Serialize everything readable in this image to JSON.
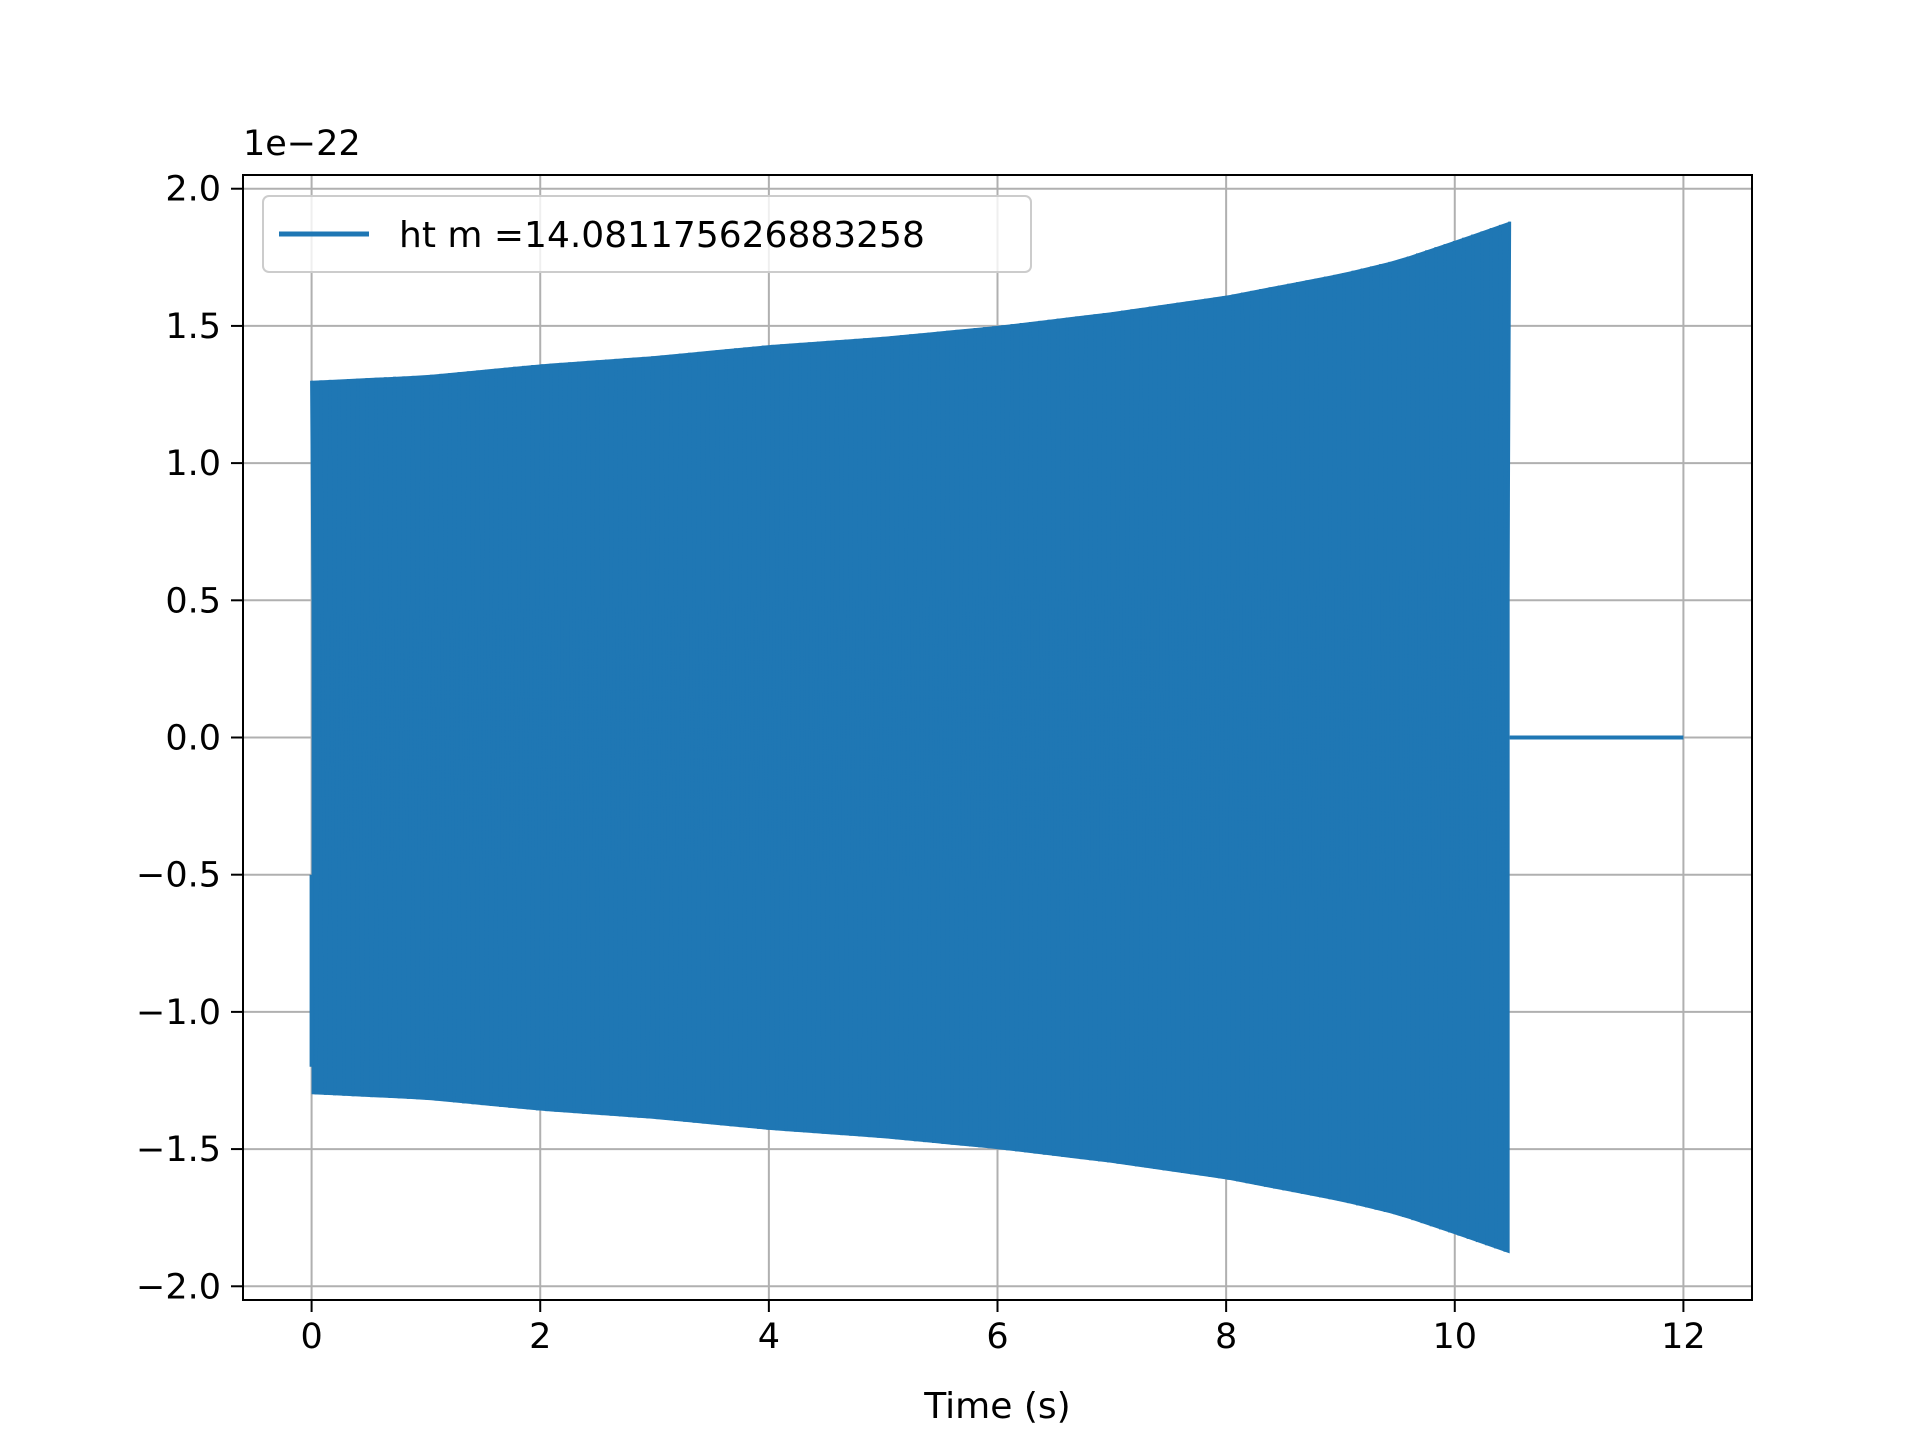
{
  "chart_data": {
    "type": "line",
    "title": "",
    "xlabel": "Time (s)",
    "ylabel": "",
    "y_offset_label": "1e−22",
    "xlim": [
      -0.6,
      12.6
    ],
    "ylim": [
      -2.05,
      2.05
    ],
    "xticks": [
      0,
      2,
      4,
      6,
      8,
      10,
      12
    ],
    "xtick_labels": [
      "0",
      "2",
      "4",
      "6",
      "8",
      "10",
      "12"
    ],
    "yticks": [
      -2.0,
      -1.5,
      -1.0,
      -0.5,
      0.0,
      0.5,
      1.0,
      1.5,
      2.0
    ],
    "ytick_labels": [
      "−2.0",
      "−1.5",
      "−1.0",
      "−0.5",
      "0.0",
      "0.5",
      "1.0",
      "1.5",
      "2.0"
    ],
    "grid": true,
    "legend_position": "upper-left",
    "series": [
      {
        "name": "ht m =14.081175626883258",
        "color": "#1f77b4",
        "signal_start": 0.0,
        "signal_end": 10.48,
        "x_end": 12.0,
        "envelope": {
          "x": [
            0,
            1,
            2,
            3,
            4,
            5,
            6,
            7,
            8,
            9,
            9.5,
            10,
            10.48
          ],
          "amplitude": [
            1.3,
            1.32,
            1.36,
            1.39,
            1.43,
            1.46,
            1.5,
            1.55,
            1.61,
            1.69,
            1.74,
            1.81,
            1.88
          ]
        }
      }
    ]
  }
}
